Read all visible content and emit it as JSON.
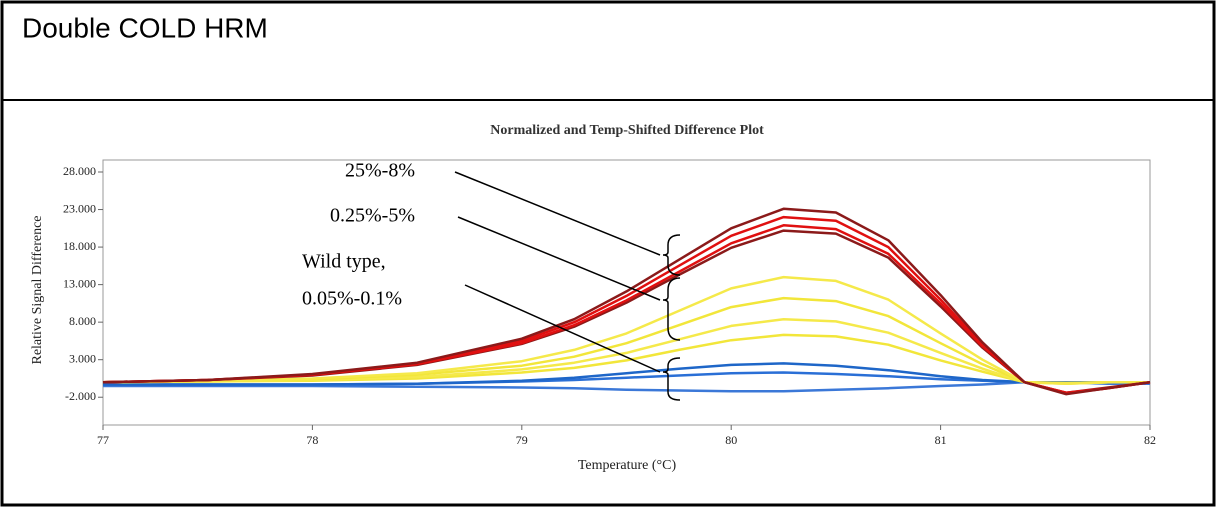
{
  "header": {
    "title": "Double COLD HRM"
  },
  "chart_data": {
    "type": "line",
    "title": "Normalized and Temp-Shifted Difference Plot",
    "x_label": "Temperature (°C)",
    "y_label": "Relative Signal Difference",
    "annotations": [
      "25%-8%",
      "0.25%-5%",
      "Wild type,",
      "0.05%-0.1%"
    ],
    "x": [
      77,
      77.5,
      78,
      78.5,
      79,
      79.25,
      79.5,
      79.75,
      80,
      80.25,
      80.5,
      80.75,
      81,
      81.2,
      81.4,
      81.6,
      81.8,
      82
    ],
    "xlim": [
      77,
      82
    ],
    "xticks": [
      77,
      78,
      79,
      80,
      81,
      82
    ],
    "ylim": [
      -5.7,
      29.6
    ],
    "yticks": [
      {
        "value": -2,
        "label": "-2.000"
      },
      {
        "value": 3,
        "label": "3.000"
      },
      {
        "value": 8,
        "label": "8.000"
      },
      {
        "value": 13,
        "label": "13.000"
      },
      {
        "value": 18,
        "label": "18.000"
      },
      {
        "value": 23,
        "label": "23.000"
      },
      {
        "value": 28,
        "label": "28.000"
      }
    ],
    "series": [
      {
        "color": "#3b78d8",
        "values": [
          -0.5,
          -0.5,
          -0.5,
          -0.6,
          -0.7,
          -0.8,
          -1,
          -1.1,
          -1.2,
          -1.2,
          -1,
          -0.8,
          -0.5,
          -0.3,
          0,
          0,
          -0.2,
          -0.2
        ]
      },
      {
        "color": "#2a6fd6",
        "values": [
          -0.3,
          -0.3,
          -0.3,
          -0.2,
          0.1,
          0.3,
          0.6,
          0.9,
          1.2,
          1.3,
          1.1,
          0.8,
          0.4,
          0.2,
          0,
          0,
          0,
          0
        ]
      },
      {
        "color": "#1e66c8",
        "values": [
          -0.3,
          -0.3,
          -0.3,
          -0.2,
          0.2,
          0.6,
          1.2,
          1.8,
          2.3,
          2.5,
          2.2,
          1.6,
          0.8,
          0.3,
          0,
          0,
          0,
          0
        ]
      },
      {
        "color": "#f2e63a",
        "values": [
          0,
          0.1,
          0.2,
          0.5,
          1.3,
          1.9,
          2.9,
          4.3,
          5.6,
          6.3,
          6.1,
          5,
          2.9,
          1.4,
          0,
          -0.1,
          0,
          0
        ]
      },
      {
        "color": "#f5e94a",
        "values": [
          0,
          0.1,
          0.3,
          0.7,
          1.7,
          2.6,
          3.9,
          5.7,
          7.5,
          8.4,
          8.1,
          6.6,
          3.9,
          1.8,
          0,
          -0.1,
          0,
          0
        ]
      },
      {
        "color": "#f2e63a",
        "values": [
          0,
          0.2,
          0.4,
          1,
          2.2,
          3.4,
          5.2,
          7.6,
          10,
          11.2,
          10.8,
          8.8,
          5.2,
          2.4,
          0,
          -0.2,
          0,
          0
        ]
      },
      {
        "color": "#f5e94a",
        "values": [
          0,
          0.2,
          0.5,
          1.2,
          2.8,
          4.3,
          6.5,
          9.5,
          12.5,
          14,
          13.5,
          11,
          6.5,
          3,
          0,
          -0.2,
          0,
          0
        ]
      },
      {
        "color": "#8b1a1a",
        "values": [
          0,
          0.3,
          0.9,
          2.3,
          5.1,
          7.4,
          10.6,
          14.3,
          17.9,
          20.2,
          19.8,
          16.6,
          10.1,
          4.6,
          0,
          -1.4,
          -0.7,
          0
        ]
      },
      {
        "color": "#e01010",
        "values": [
          0,
          0.3,
          1,
          2.4,
          5.2,
          7.6,
          10.9,
          14.7,
          18.5,
          20.9,
          20.4,
          17.1,
          10.5,
          4.8,
          0,
          -1.4,
          -0.8,
          0
        ]
      },
      {
        "color": "#e01010",
        "values": [
          0,
          0.3,
          1,
          2.5,
          5.5,
          8,
          11.5,
          15.5,
          19.5,
          22,
          21.5,
          18,
          11,
          5,
          0,
          -1.5,
          -0.8,
          0
        ]
      },
      {
        "color": "#8b1a1a",
        "values": [
          0,
          0.3,
          1.1,
          2.6,
          5.8,
          8.4,
          12.1,
          16.3,
          20.5,
          23.1,
          22.6,
          18.9,
          11.6,
          5.3,
          0,
          -1.6,
          -0.8,
          0
        ]
      }
    ]
  }
}
